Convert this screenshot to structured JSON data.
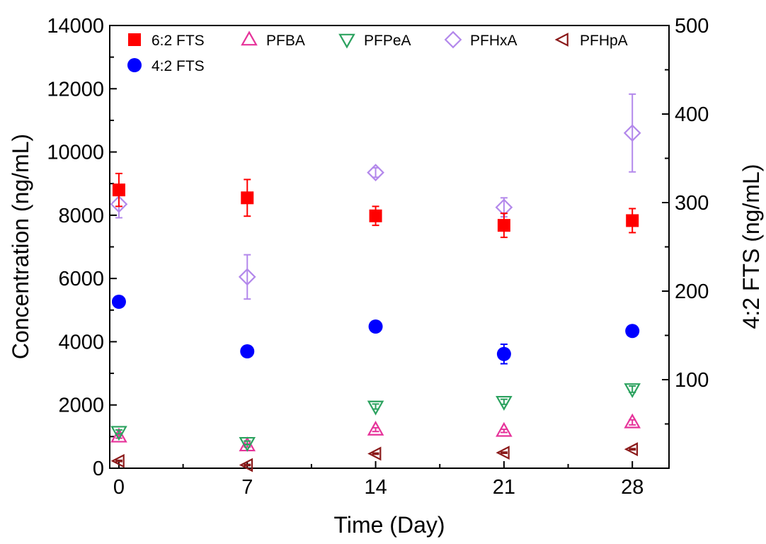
{
  "chart_data": {
    "type": "scatter",
    "xlabel": "Time (Day)",
    "ylabel": "Concentration (ng/mL)",
    "y2label": "4:2 FTS (ng/mL)",
    "x_ticks": [
      0,
      7,
      14,
      21,
      28
    ],
    "xlim": [
      -0.5,
      30
    ],
    "ylim": [
      0,
      14000
    ],
    "y_ticks": [
      0,
      2000,
      4000,
      6000,
      8000,
      10000,
      12000,
      14000
    ],
    "y2lim": [
      0,
      500
    ],
    "y2_ticks": [
      100,
      200,
      300,
      400,
      500
    ],
    "grid": false,
    "legend_position": "top",
    "series": [
      {
        "name": "6:2 FTS",
        "axis": "left",
        "marker": "square",
        "color": "#ff0000",
        "x": [
          0,
          7,
          14,
          21,
          28
        ],
        "y": [
          8800,
          8550,
          7980,
          7680,
          7830
        ],
        "err": [
          520,
          580,
          300,
          380,
          380
        ]
      },
      {
        "name": "4:2 FTS",
        "axis": "right",
        "marker": "circle",
        "color": "#0000ff",
        "x": [
          0,
          7,
          14,
          21,
          28
        ],
        "y": [
          188,
          132,
          160,
          129,
          155
        ],
        "err": [
          5,
          3,
          3,
          11,
          3
        ]
      },
      {
        "name": "PFBA",
        "axis": "left",
        "marker": "triangle-up",
        "color": "#e6339a",
        "x": [
          0,
          7,
          14,
          21,
          28
        ],
        "y": [
          1000,
          720,
          1220,
          1180,
          1450
        ],
        "err": [
          50,
          50,
          60,
          50,
          80
        ]
      },
      {
        "name": "PFPeA",
        "axis": "left",
        "marker": "triangle-down",
        "color": "#2ca25f",
        "x": [
          0,
          7,
          14,
          21,
          28
        ],
        "y": [
          1150,
          800,
          1950,
          2100,
          2500
        ],
        "err": [
          60,
          60,
          80,
          80,
          100
        ]
      },
      {
        "name": "PFHxA",
        "axis": "left",
        "marker": "diamond",
        "color": "#b388eb",
        "x": [
          0,
          7,
          14,
          21,
          28
        ],
        "y": [
          8350,
          6050,
          9350,
          8250,
          10600
        ],
        "err": [
          430,
          700,
          150,
          300,
          1230
        ]
      },
      {
        "name": "PFHpA",
        "axis": "left",
        "marker": "triangle-left",
        "color": "#8b1a1a",
        "x": [
          0,
          7,
          14,
          21,
          28
        ],
        "y": [
          230,
          100,
          460,
          490,
          600
        ],
        "err": [
          20,
          20,
          20,
          20,
          20
        ]
      }
    ]
  }
}
